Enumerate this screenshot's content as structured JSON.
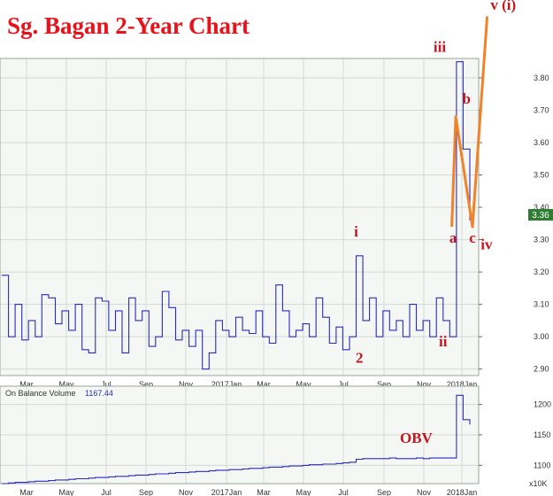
{
  "title": "Sg. Bagan 2-Year Chart",
  "colors": {
    "title": "#e8121a",
    "price_line": "#2b2bbf",
    "wave": "#f0822a",
    "wave_label": "#c8141e",
    "plot_bg": "#f4f7f4",
    "grid": "#d2dbd2"
  },
  "chart_data": [
    {
      "type": "line",
      "name": "price",
      "x_ticks": [
        "Mar",
        "May",
        "Jul",
        "Sep",
        "Nov",
        "2017Jan",
        "Mar",
        "May",
        "Jul",
        "Sep",
        "Nov",
        "2018Jan"
      ],
      "y_ticks": [
        "3.80",
        "3.70",
        "3.60",
        "3.50",
        "3.40",
        "3.30",
        "3.20",
        "3.10",
        "3.00",
        "2.90"
      ],
      "ylim": [
        2.88,
        3.86
      ],
      "last_value": "3.36",
      "grid": true,
      "series": [
        {
          "values": [
            3.19,
            3.0,
            3.1,
            2.99,
            3.05,
            3.0,
            3.13,
            3.12,
            3.04,
            3.08,
            3.02,
            3.1,
            2.96,
            2.95,
            3.12,
            3.11,
            3.02,
            3.08,
            2.95,
            3.12,
            3.05,
            3.08,
            2.97,
            3.0,
            3.14,
            3.09,
            2.99,
            3.02,
            2.97,
            3.02,
            2.9,
            2.95,
            3.05,
            3.02,
            3.0,
            3.06,
            3.02,
            3.01,
            3.08,
            3.0,
            2.98,
            3.16,
            3.08,
            3.0,
            3.02,
            3.04,
            3.0,
            3.12,
            3.06,
            2.98,
            3.03,
            2.96,
            3.0,
            3.25,
            3.05,
            3.12,
            3.0,
            3.08,
            3.02,
            3.05,
            3.0,
            3.1,
            3.02,
            3.05,
            3.0,
            3.12,
            3.05,
            3.0,
            3.85,
            3.58,
            3.36
          ]
        }
      ],
      "wave": {
        "points": [
          [
            67.3,
            3.34
          ],
          [
            67.9,
            3.68
          ],
          [
            70.4,
            3.34
          ],
          [
            72.6,
            3.99
          ]
        ],
        "labels": [
          {
            "text": "i",
            "x": 53,
            "y": 3.31
          },
          {
            "text": "2",
            "x": 53.5,
            "y": 2.92
          },
          {
            "text": "iii",
            "x": 65.5,
            "y": 3.88
          },
          {
            "text": "ii",
            "x": 66,
            "y": 2.97
          },
          {
            "text": "a",
            "x": 67.5,
            "y": 3.29
          },
          {
            "text": "b",
            "x": 69.5,
            "y": 3.72
          },
          {
            "text": "c",
            "x": 70.4,
            "y": 3.29
          },
          {
            "text": "iv",
            "x": 72.5,
            "y": 3.27
          },
          {
            "text": "v (i)",
            "x": 75,
            "y": 4.01
          }
        ]
      }
    },
    {
      "type": "line",
      "name": "On Balance Volume",
      "legend_label": "On Balance Volume",
      "legend_value": "1167.44",
      "unit_label": "x10K",
      "annotation": "OBV",
      "y_ticks": [
        "1200",
        "1150",
        "1100"
      ],
      "ylim": [
        1070,
        1230
      ],
      "x_ticks": [
        "Mar",
        "May",
        "Jul",
        "Sep",
        "Nov",
        "2017Jan",
        "Mar",
        "May",
        "Jul",
        "Sep",
        "Nov",
        "2018Jan"
      ],
      "grid": true,
      "series": [
        {
          "values": [
            1070,
            1071,
            1072,
            1072,
            1073,
            1074,
            1074,
            1075,
            1076,
            1076,
            1077,
            1078,
            1078,
            1079,
            1080,
            1080,
            1081,
            1082,
            1082,
            1083,
            1084,
            1084,
            1085,
            1086,
            1086,
            1087,
            1088,
            1088,
            1089,
            1090,
            1090,
            1091,
            1092,
            1092,
            1093,
            1093,
            1094,
            1095,
            1095,
            1096,
            1097,
            1097,
            1098,
            1099,
            1099,
            1100,
            1101,
            1101,
            1102,
            1102,
            1103,
            1104,
            1105,
            1110,
            1111,
            1111,
            1111,
            1111,
            1112,
            1111,
            1111,
            1111,
            1112,
            1111,
            1112,
            1112,
            1112,
            1112,
            1215,
            1175,
            1167
          ]
        }
      ]
    }
  ]
}
